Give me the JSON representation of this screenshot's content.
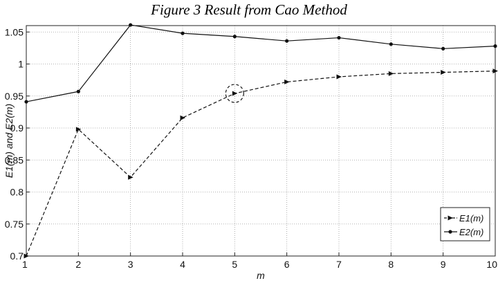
{
  "caption": "Figure 3 Result from Cao Method",
  "chart_data": {
    "type": "line",
    "x": [
      1,
      2,
      3,
      4,
      5,
      6,
      7,
      8,
      9,
      10
    ],
    "series": [
      {
        "name": "E1(m)",
        "values": [
          0.7,
          0.898,
          0.823,
          0.916,
          0.954,
          0.972,
          0.98,
          0.985,
          0.987,
          0.989
        ],
        "line_style": "dashed",
        "marker": "triangle-right",
        "color": "#111111"
      },
      {
        "name": "E2(m)",
        "values": [
          0.941,
          0.957,
          1.061,
          1.048,
          1.043,
          1.036,
          1.041,
          1.031,
          1.024,
          1.028
        ],
        "line_style": "solid",
        "marker": "dot",
        "color": "#111111"
      }
    ],
    "xlabel": "m",
    "ylabel": "E1(m) and E2(m)",
    "xlim": [
      1,
      10
    ],
    "ylim": [
      0.7,
      1.06
    ],
    "xticks": [
      "1",
      "2",
      "3",
      "4",
      "5",
      "6",
      "7",
      "8",
      "9",
      "10"
    ],
    "yticks": [
      {
        "value": 0.7,
        "label": "0.7"
      },
      {
        "value": 0.75,
        "label": "0.75"
      },
      {
        "value": 0.8,
        "label": "0.8"
      },
      {
        "value": 0.85,
        "label": "0.85"
      },
      {
        "value": 0.9,
        "label": "0.9"
      },
      {
        "value": 0.95,
        "label": "0.95"
      },
      {
        "value": 1.0,
        "label": "1"
      },
      {
        "value": 1.05,
        "label": "1.05"
      }
    ],
    "grid": true,
    "legend_position": "bottom-right",
    "annotation": {
      "shape": "dashed-circle",
      "x": 5,
      "y": 0.954
    }
  }
}
